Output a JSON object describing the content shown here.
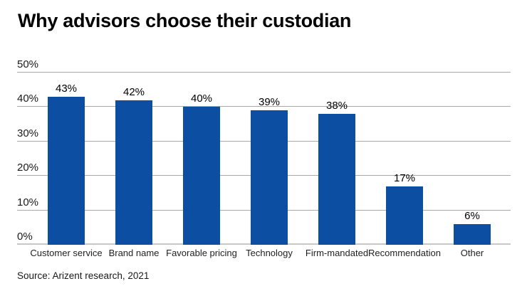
{
  "header": {
    "title": "Why advisors choose their custodian"
  },
  "footer": {
    "source": "Source: Arizent research, 2021"
  },
  "colors": {
    "bar": "#0B4EA2",
    "gridline": "#a8a8a8",
    "baseline": "#c7c7c7",
    "text": "#000000"
  },
  "chart_data": {
    "type": "bar",
    "title": "Why advisors choose their custodian",
    "categories": [
      "Customer service",
      "Brand name",
      "Favorable pricing",
      "Technology",
      "Firm-mandated",
      "Recommendation",
      "Other"
    ],
    "values": [
      43,
      42,
      40,
      39,
      38,
      17,
      6
    ],
    "value_labels": [
      "43%",
      "42%",
      "40%",
      "39%",
      "38%",
      "17%",
      "6%"
    ],
    "y_ticks": [
      0,
      10,
      20,
      30,
      40,
      50
    ],
    "y_tick_suffix": "%",
    "ylim": [
      0,
      50
    ],
    "xlabel": "",
    "ylabel": "",
    "grid": true,
    "legend": "none",
    "source": "Source: Arizent research, 2021"
  }
}
